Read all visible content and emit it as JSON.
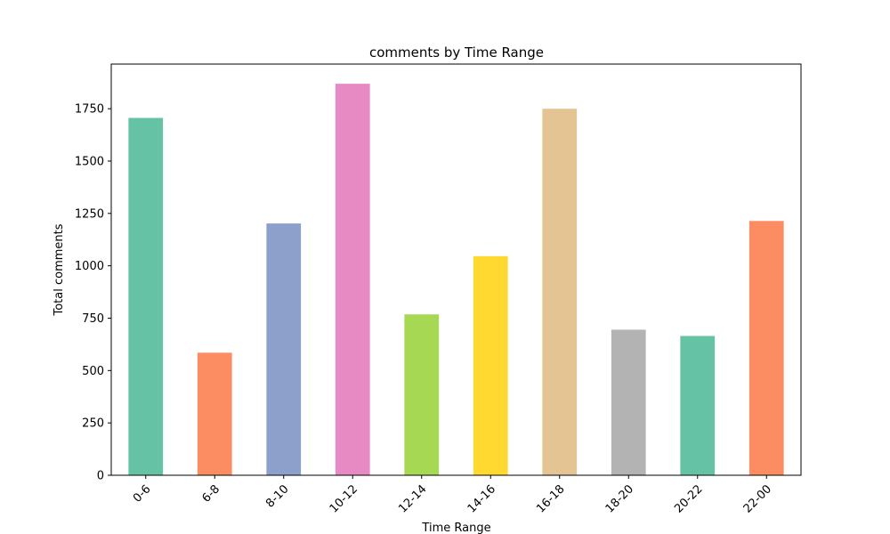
{
  "chart_data": {
    "type": "bar",
    "title": "comments by Time Range",
    "xlabel": "Time Range",
    "ylabel": "Total comments",
    "categories": [
      "0-6",
      "6-8",
      "8-10",
      "10-12",
      "12-14",
      "14-16",
      "16-18",
      "18-20",
      "20-22",
      "22-00"
    ],
    "values": [
      1706,
      585,
      1202,
      1869,
      768,
      1046,
      1750,
      695,
      665,
      1214
    ],
    "ylim": [
      0,
      1963
    ],
    "yticks": [
      0,
      250,
      500,
      750,
      1000,
      1250,
      1500,
      1750
    ],
    "grid": false,
    "legend": "none",
    "colors": [
      "#66c2a5",
      "#fc8d62",
      "#8da0cb",
      "#e78ac3",
      "#a6d854",
      "#ffd92f",
      "#e5c494",
      "#b3b3b3",
      "#66c2a5",
      "#fc8d62"
    ]
  }
}
